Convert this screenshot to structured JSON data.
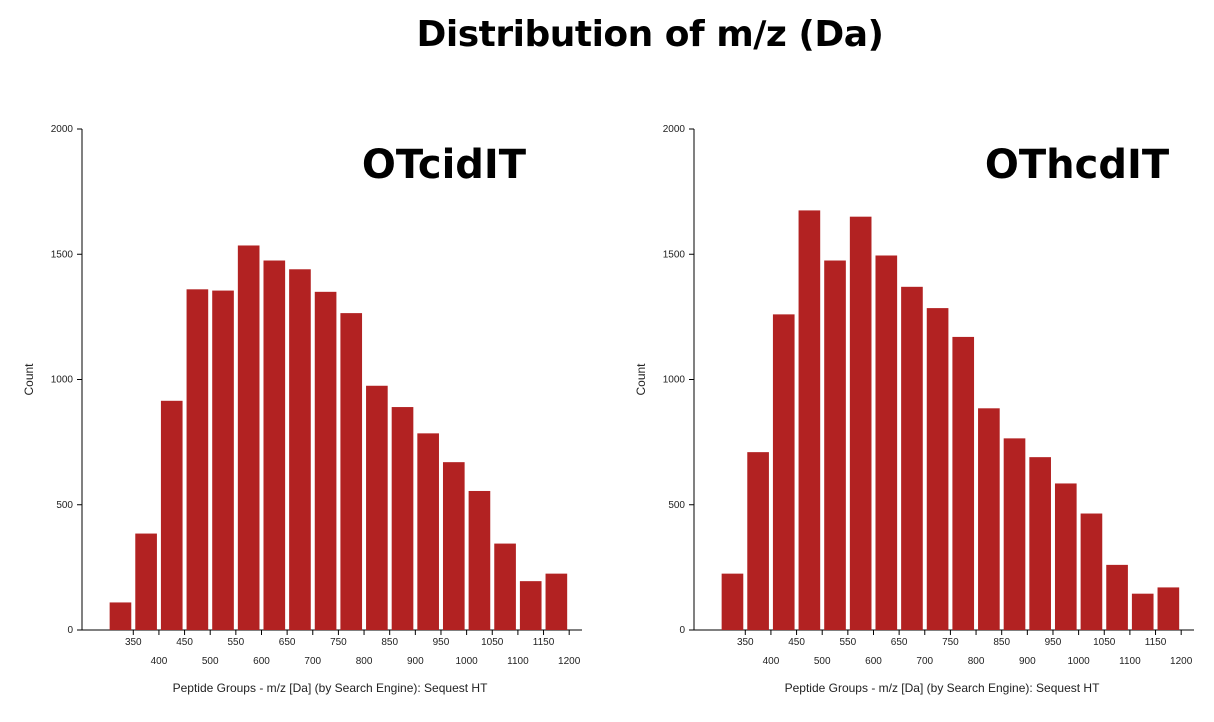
{
  "title": "Distribution of m/z (Da)",
  "colors": {
    "bar": "#B22222",
    "axis": "#000000"
  },
  "chart_data": [
    {
      "type": "bar",
      "panel_title": "OTcidIT",
      "title": "OTcidIT",
      "xlabel": "Peptide Groups - m/z [Da] (by Search Engine): Sequest HT",
      "ylabel": "Count",
      "ylim": [
        0,
        2000
      ],
      "yticks": [
        "0",
        "500",
        "1000",
        "1500",
        "2000"
      ],
      "xticks_upper": [
        "350",
        "450",
        "550",
        "650",
        "750",
        "850",
        "950",
        "1050",
        "1150"
      ],
      "xticks_lower": [
        "400",
        "500",
        "600",
        "700",
        "800",
        "900",
        "1000",
        "1100",
        "1200"
      ],
      "bin_start": 325,
      "bin_width": 50,
      "values": [
        110,
        385,
        915,
        1360,
        1355,
        1535,
        1475,
        1440,
        1350,
        1265,
        975,
        890,
        785,
        670,
        555,
        345,
        195,
        225
      ]
    },
    {
      "type": "bar",
      "panel_title": "OThcdIT",
      "title": "OThcdIT",
      "xlabel": "Peptide Groups - m/z [Da] (by Search Engine): Sequest HT",
      "ylabel": "Count",
      "ylim": [
        0,
        2000
      ],
      "yticks": [
        "0",
        "500",
        "1000",
        "1500",
        "2000"
      ],
      "xticks_upper": [
        "350",
        "450",
        "550",
        "650",
        "750",
        "850",
        "950",
        "1050",
        "1150"
      ],
      "xticks_lower": [
        "400",
        "500",
        "600",
        "700",
        "800",
        "900",
        "1000",
        "1100",
        "1200"
      ],
      "bin_start": 325,
      "bin_width": 50,
      "values": [
        225,
        710,
        1260,
        1675,
        1475,
        1650,
        1495,
        1370,
        1285,
        1170,
        885,
        765,
        690,
        585,
        465,
        260,
        145,
        170
      ]
    }
  ]
}
